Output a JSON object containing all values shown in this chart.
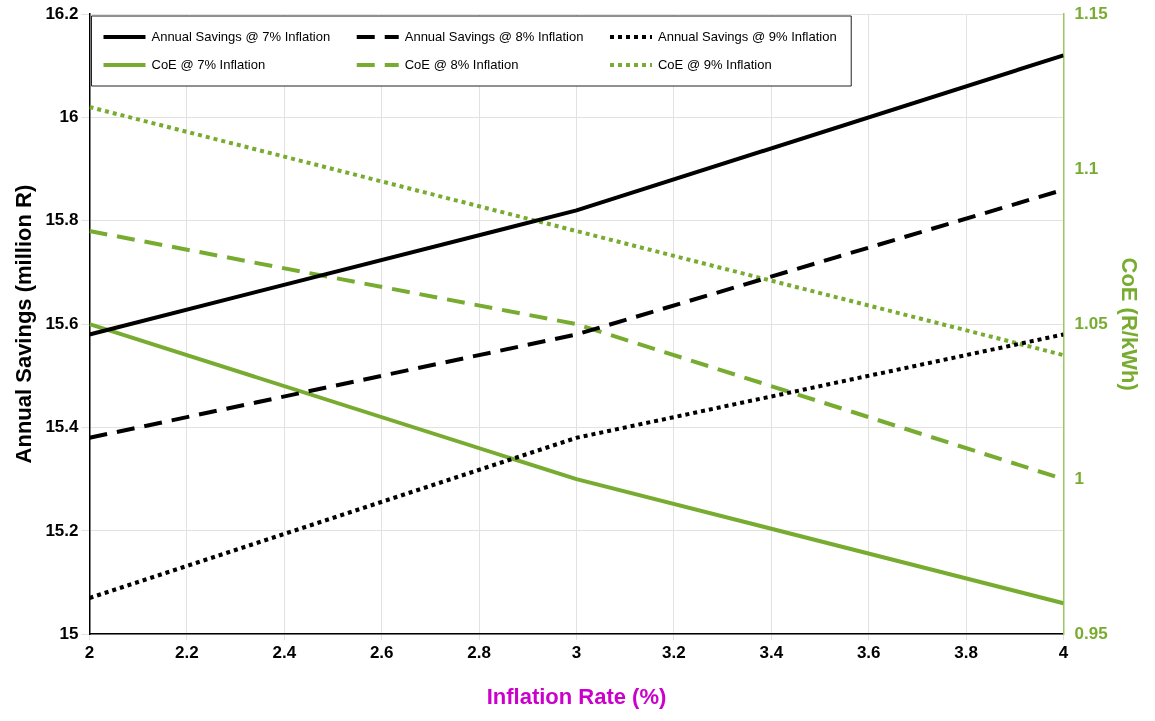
{
  "chart_data": {
    "type": "line",
    "xlabel": "Inflation Rate (%)",
    "ylabel": "Annual Savings (million R)",
    "y2label": "CoE (R/kWh)",
    "x": [
      2,
      3,
      4
    ],
    "xlim": [
      2,
      4
    ],
    "xticks": [
      2,
      2.2,
      2.4,
      2.6,
      2.8,
      3,
      3.2,
      3.4,
      3.6,
      3.8,
      4
    ],
    "ylim": [
      15,
      16.2
    ],
    "yticks": [
      15,
      15.2,
      15.4,
      15.6,
      15.8,
      16,
      16.2
    ],
    "y2lim": [
      0.95,
      1.15
    ],
    "y2ticks": [
      0.95,
      1,
      1.05,
      1.1,
      1.15
    ],
    "grid": true,
    "legend": "top left",
    "marker": "none",
    "series": [
      {
        "name": "Annual Savings @ 7% Inflation",
        "color": "#000000",
        "line_style": "solid",
        "values": [
          15.58,
          15.82,
          16.12
        ]
      },
      {
        "name": "Annual Savings @ 8% Inflation",
        "color": "#000000",
        "line_style": "dashed",
        "values": [
          15.38,
          15.58,
          15.86
        ]
      },
      {
        "name": "Annual Savings @ 9% Inflation",
        "color": "#000000",
        "line_style": "dotted",
        "values": [
          15.07,
          15.38,
          15.58
        ]
      },
      {
        "name": "CoE @ 7% Inflation",
        "color": "#77ac30",
        "line_style": "solid",
        "axis": "y2",
        "values": [
          1.05,
          1.0,
          0.96
        ]
      },
      {
        "name": "CoE @ 8% Inflation",
        "color": "#77ac30",
        "line_style": "dashed",
        "axis": "y2",
        "values": [
          1.08,
          1.05,
          1.0
        ]
      },
      {
        "name": "CoE @ 9% Inflation",
        "color": "#77ac30",
        "line_style": "dotted",
        "axis": "y2",
        "values": [
          1.12,
          1.08,
          1.04
        ]
      }
    ]
  }
}
